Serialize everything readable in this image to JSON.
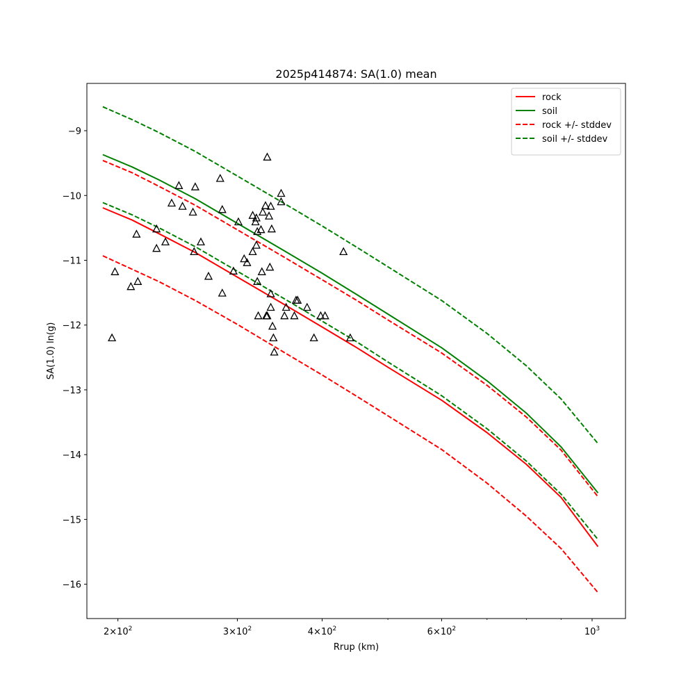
{
  "chart_data": {
    "type": "line",
    "title": "2025p414874: SA(1.0) mean",
    "xlabel": "Rrup (km)",
    "ylabel": "SA(1.0) ln(g)",
    "xscale": "log",
    "xlim": [
      180,
      1120
    ],
    "ylim": [
      -16.53,
      -8.27
    ],
    "x_ticks": [
      {
        "value": 200,
        "base": "2×10",
        "exp": "2"
      },
      {
        "value": 300,
        "base": "3×10",
        "exp": "2"
      },
      {
        "value": 400,
        "base": "4×10",
        "exp": "2"
      },
      {
        "value": 600,
        "base": "6×10",
        "exp": "2"
      },
      {
        "value": 1000,
        "base": "10",
        "exp": "3"
      }
    ],
    "x_minor_ticks": [
      500,
      700,
      800,
      900
    ],
    "y_ticks": [
      {
        "value": -16,
        "label": "−16"
      },
      {
        "value": -15,
        "label": "−15"
      },
      {
        "value": -14,
        "label": "−14"
      },
      {
        "value": -13,
        "label": "−13"
      },
      {
        "value": -12,
        "label": "−12"
      },
      {
        "value": -11,
        "label": "−11"
      },
      {
        "value": -10,
        "label": "−10"
      },
      {
        "value": -9,
        "label": "−9"
      }
    ],
    "grid": false,
    "legend_position": "top-right",
    "series": [
      {
        "name": "rock",
        "color": "#ff0000",
        "dash": "solid",
        "x": [
          190,
          210,
          230,
          260,
          300,
          350,
          400,
          450,
          500,
          600,
          700,
          800,
          900,
          1020
        ],
        "y": [
          -10.19,
          -10.38,
          -10.59,
          -10.88,
          -11.26,
          -11.67,
          -12.03,
          -12.35,
          -12.65,
          -13.16,
          -13.66,
          -14.15,
          -14.66,
          -15.42
        ]
      },
      {
        "name": "soil",
        "color": "#008000",
        "dash": "solid",
        "x": [
          190,
          210,
          230,
          260,
          300,
          350,
          400,
          450,
          500,
          600,
          700,
          800,
          900,
          1020
        ],
        "y": [
          -9.37,
          -9.56,
          -9.76,
          -10.05,
          -10.43,
          -10.84,
          -11.2,
          -11.53,
          -11.83,
          -12.35,
          -12.86,
          -13.36,
          -13.88,
          -14.59
        ]
      },
      {
        "name": "rock +/- stddev",
        "color": "#ff0000",
        "dash": "dashed",
        "x": [
          190,
          210,
          230,
          260,
          300,
          350,
          400,
          450,
          500,
          600,
          700,
          800,
          900,
          1020
        ],
        "y": [
          -9.46,
          -9.65,
          -9.86,
          -10.15,
          -10.53,
          -10.94,
          -11.3,
          -11.62,
          -11.92,
          -12.43,
          -12.93,
          -13.42,
          -13.93,
          -14.65
        ]
      },
      {
        "name": "",
        "color": "#ff0000",
        "dash": "dashed",
        "x": [
          190,
          210,
          230,
          260,
          300,
          350,
          400,
          450,
          500,
          600,
          700,
          800,
          900,
          1020
        ],
        "y": [
          -10.93,
          -11.14,
          -11.33,
          -11.62,
          -11.99,
          -12.41,
          -12.77,
          -13.1,
          -13.4,
          -13.92,
          -14.44,
          -14.95,
          -15.45,
          -16.13
        ]
      },
      {
        "name": "soil +/- stddev",
        "color": "#008000",
        "dash": "dashed",
        "x": [
          190,
          210,
          230,
          260,
          300,
          350,
          400,
          450,
          500,
          600,
          700,
          800,
          900,
          1020
        ],
        "y": [
          -8.63,
          -8.83,
          -9.03,
          -9.32,
          -9.7,
          -10.11,
          -10.47,
          -10.8,
          -11.1,
          -11.62,
          -12.13,
          -12.63,
          -13.14,
          -13.83
        ]
      },
      {
        "name": "",
        "color": "#008000",
        "dash": "dashed",
        "x": [
          190,
          210,
          230,
          260,
          300,
          350,
          400,
          450,
          500,
          600,
          700,
          800,
          900,
          1020
        ],
        "y": [
          -10.11,
          -10.3,
          -10.5,
          -10.79,
          -11.17,
          -11.58,
          -11.94,
          -12.26,
          -12.57,
          -13.09,
          -13.6,
          -14.1,
          -14.61,
          -15.31
        ]
      }
    ],
    "observations": {
      "marker": "triangle",
      "color": "#000000",
      "points": [
        {
          "x": 196,
          "y": -12.2
        },
        {
          "x": 198,
          "y": -11.18
        },
        {
          "x": 209,
          "y": -11.41
        },
        {
          "x": 213,
          "y": -10.6
        },
        {
          "x": 214,
          "y": -11.33
        },
        {
          "x": 228,
          "y": -10.52
        },
        {
          "x": 228,
          "y": -10.82
        },
        {
          "x": 235,
          "y": -10.72
        },
        {
          "x": 240,
          "y": -10.12
        },
        {
          "x": 246,
          "y": -9.85
        },
        {
          "x": 249,
          "y": -10.17
        },
        {
          "x": 258,
          "y": -10.26
        },
        {
          "x": 259,
          "y": -10.87
        },
        {
          "x": 260,
          "y": -9.87
        },
        {
          "x": 265,
          "y": -10.72
        },
        {
          "x": 272,
          "y": -11.25
        },
        {
          "x": 283,
          "y": -9.74
        },
        {
          "x": 285,
          "y": -10.22
        },
        {
          "x": 285,
          "y": -11.51
        },
        {
          "x": 296,
          "y": -11.17
        },
        {
          "x": 301,
          "y": -10.41
        },
        {
          "x": 307,
          "y": -10.98
        },
        {
          "x": 310,
          "y": -11.04
        },
        {
          "x": 316,
          "y": -10.87
        },
        {
          "x": 316,
          "y": -10.31
        },
        {
          "x": 319,
          "y": -10.41
        },
        {
          "x": 320,
          "y": -10.35
        },
        {
          "x": 320,
          "y": -10.77
        },
        {
          "x": 321,
          "y": -10.56
        },
        {
          "x": 321,
          "y": -11.33
        },
        {
          "x": 322,
          "y": -11.86
        },
        {
          "x": 325,
          "y": -10.53
        },
        {
          "x": 326,
          "y": -11.18
        },
        {
          "x": 327,
          "y": -10.26
        },
        {
          "x": 330,
          "y": -10.16
        },
        {
          "x": 331,
          "y": -11.86
        },
        {
          "x": 332,
          "y": -11.86
        },
        {
          "x": 332,
          "y": -9.41
        },
        {
          "x": 334,
          "y": -10.32
        },
        {
          "x": 335,
          "y": -11.11
        },
        {
          "x": 336,
          "y": -10.17
        },
        {
          "x": 336,
          "y": -11.73
        },
        {
          "x": 336,
          "y": -11.52
        },
        {
          "x": 337,
          "y": -10.52
        },
        {
          "x": 338,
          "y": -12.02
        },
        {
          "x": 339,
          "y": -12.2
        },
        {
          "x": 340,
          "y": -12.42
        },
        {
          "x": 348,
          "y": -10.1
        },
        {
          "x": 348,
          "y": -9.97
        },
        {
          "x": 352,
          "y": -11.86
        },
        {
          "x": 354,
          "y": -11.73
        },
        {
          "x": 364,
          "y": -11.86
        },
        {
          "x": 366,
          "y": -11.62
        },
        {
          "x": 368,
          "y": -11.62
        },
        {
          "x": 380,
          "y": -11.73
        },
        {
          "x": 389,
          "y": -12.2
        },
        {
          "x": 398,
          "y": -11.86
        },
        {
          "x": 404,
          "y": -11.86
        },
        {
          "x": 430,
          "y": -10.87
        },
        {
          "x": 440,
          "y": -12.2
        }
      ]
    }
  }
}
